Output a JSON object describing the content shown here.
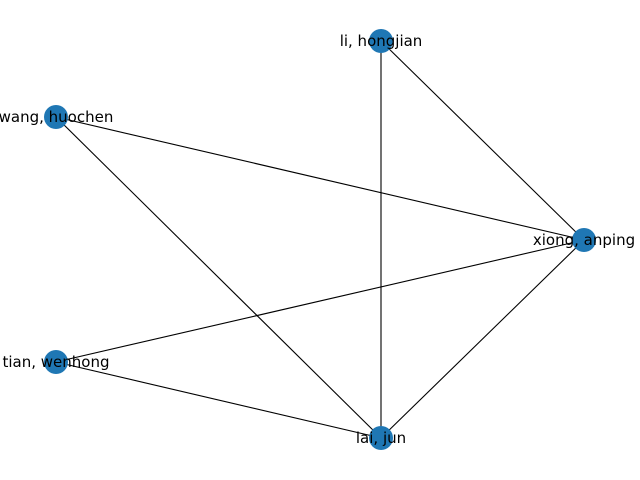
{
  "graph": {
    "node_color": "#1f77b4",
    "edge_color": "#000000",
    "nodes": [
      {
        "id": "li",
        "label": "li, hongjian"
      },
      {
        "id": "wang",
        "label": "wang, huochen"
      },
      {
        "id": "xiong",
        "label": "xiong, anping"
      },
      {
        "id": "tian",
        "label": "tian, wenhong"
      },
      {
        "id": "lai",
        "label": "lai, jun"
      }
    ],
    "edges": [
      [
        "li",
        "xiong"
      ],
      [
        "li",
        "lai"
      ],
      [
        "wang",
        "xiong"
      ],
      [
        "wang",
        "lai"
      ],
      [
        "xiong",
        "tian"
      ],
      [
        "xiong",
        "lai"
      ],
      [
        "tian",
        "lai"
      ]
    ]
  }
}
